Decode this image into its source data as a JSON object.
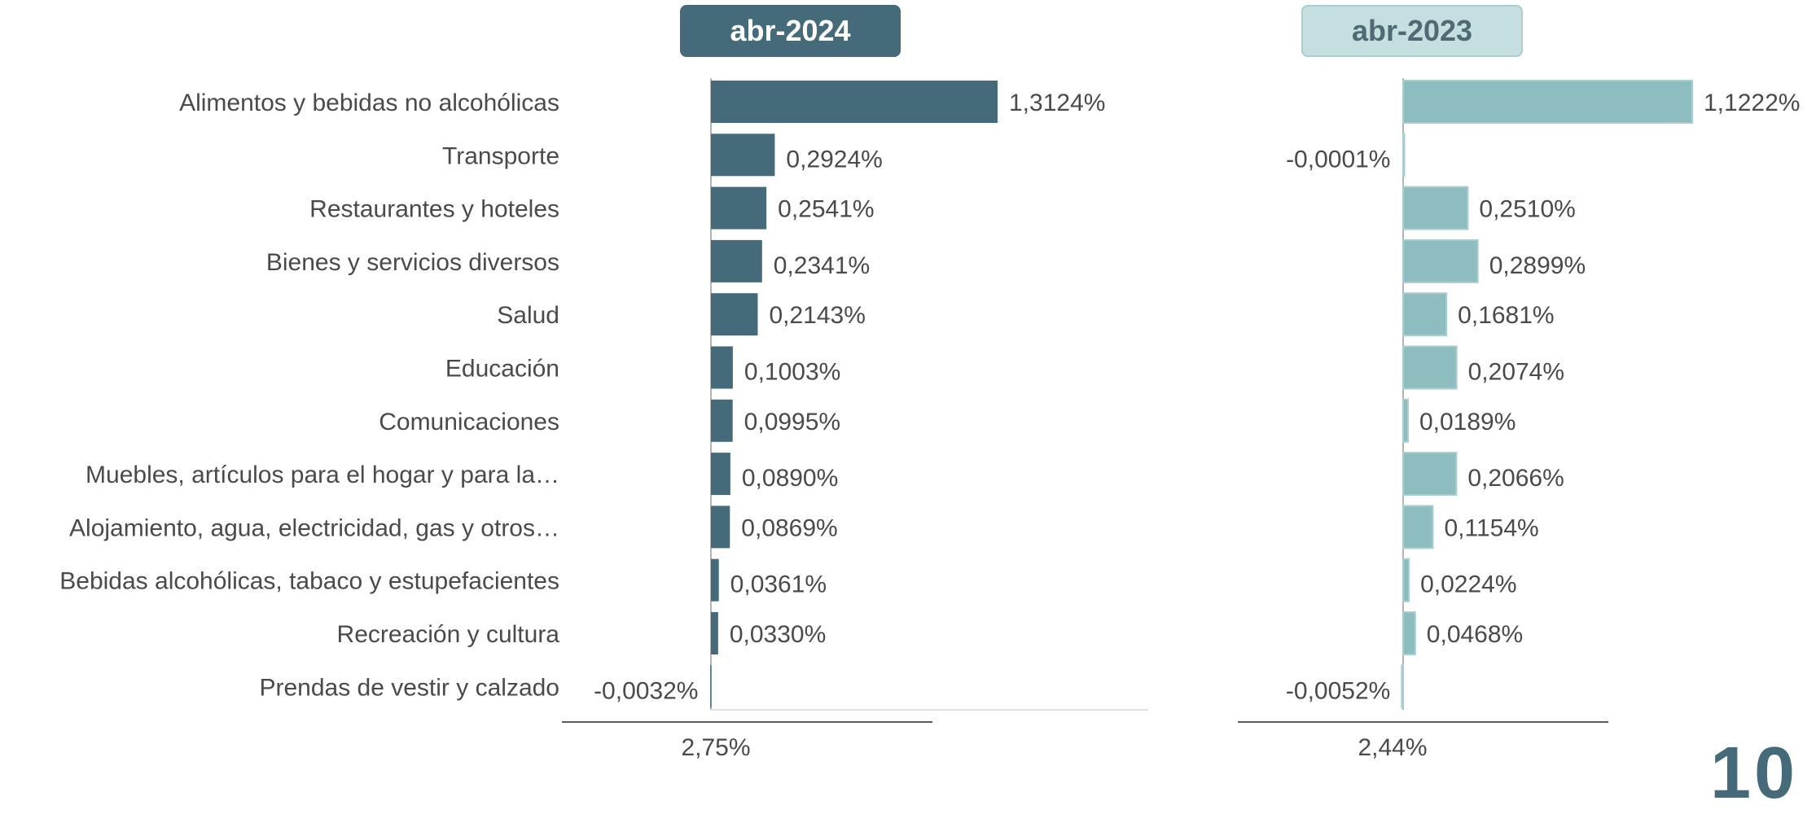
{
  "panels": [
    {
      "period": "abr-2024",
      "total": "2,75%",
      "color": "#456b7b"
    },
    {
      "period": "abr-2023",
      "total": "2,44%",
      "color": "#8dbdbe"
    }
  ],
  "page_number": "10",
  "chart_data": [
    {
      "type": "bar",
      "orientation": "horizontal",
      "title": "abr-2024",
      "categories": [
        "Alimentos y bebidas no alcohólicas",
        "Transporte",
        "Restaurantes y hoteles",
        "Bienes y servicios diversos",
        "Salud",
        "Educación",
        "Comunicaciones",
        "Muebles, artículos para el hogar y para la…",
        "Alojamiento, agua, electricidad, gas y otros…",
        "Bebidas alcohólicas, tabaco y estupefacientes",
        "Recreación y cultura",
        "Prendas de vestir y calzado"
      ],
      "values": [
        1.3124,
        0.2924,
        0.2541,
        0.2341,
        0.2143,
        0.1003,
        0.0995,
        0.089,
        0.0869,
        0.0361,
        0.033,
        -0.0032
      ],
      "labels": [
        "1,3124%",
        "0,2924%",
        "0,2541%",
        "0,2341%",
        "0,2143%",
        "0,1003%",
        "0,0995%",
        "0,0890%",
        "0,0869%",
        "0,0361%",
        "0,0330%",
        "-0,0032%"
      ],
      "color": "#456b7b",
      "total": "2,75%"
    },
    {
      "type": "bar",
      "orientation": "horizontal",
      "title": "abr-2023",
      "categories": [
        "Alimentos y bebidas no alcohólicas",
        "Transporte",
        "Restaurantes y hoteles",
        "Bienes y servicios diversos",
        "Salud",
        "Educación",
        "Comunicaciones",
        "Muebles, artículos para el hogar y para la…",
        "Alojamiento, agua, electricidad, gas y otros…",
        "Bebidas alcohólicas, tabaco y estupefacientes",
        "Recreación y cultura",
        "Prendas de vestir y calzado"
      ],
      "values": [
        1.1222,
        -0.0001,
        0.251,
        0.2899,
        0.1681,
        0.2074,
        0.0189,
        0.2066,
        0.1154,
        0.0224,
        0.0468,
        -0.0052
      ],
      "labels": [
        "1,1222%",
        "-0,0001%",
        "0,2510%",
        "0,2899%",
        "0,1681%",
        "0,2074%",
        "0,0189%",
        "0,2066%",
        "0,1154%",
        "0,0224%",
        "0,0468%",
        "-0,0052%"
      ],
      "color": "#8dbdbe",
      "total": "2,44%"
    }
  ]
}
